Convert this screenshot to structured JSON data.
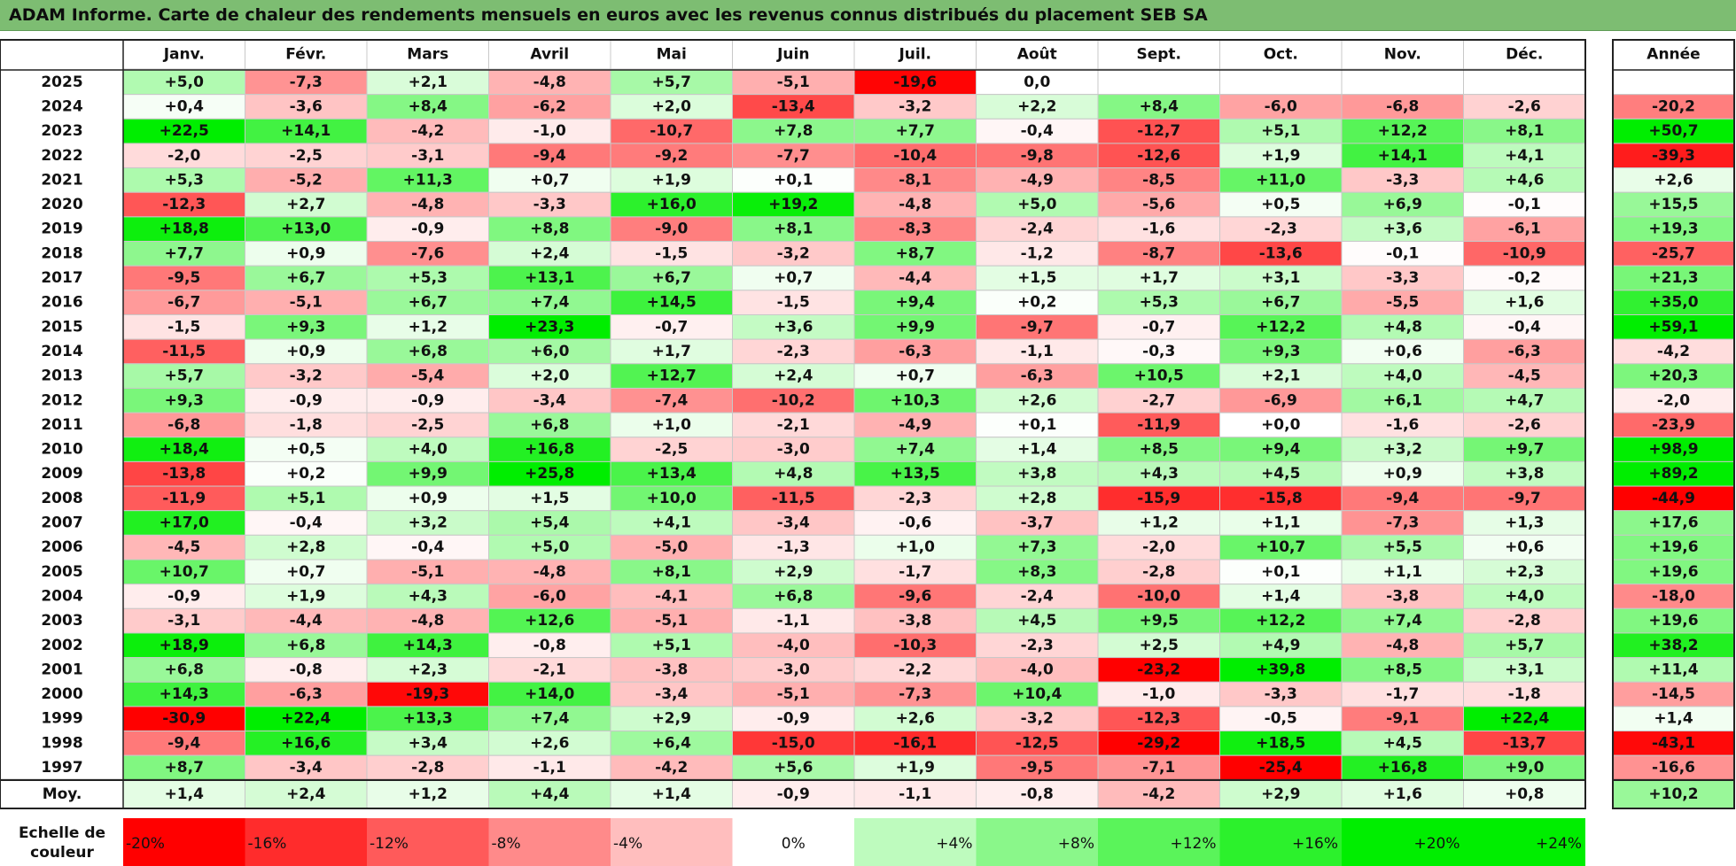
{
  "title": "ADAM Informe. Carte de chaleur des rendements mensuels en euros avec les revenus connus distribués du placement SEB SA",
  "chart_data": {
    "type": "heatmap",
    "months": [
      "Janv.",
      "Févr.",
      "Mars",
      "Avril",
      "Mai",
      "Juin",
      "Juil.",
      "Août",
      "Sept.",
      "Oct.",
      "Nov.",
      "Déc."
    ],
    "year_header": "Année",
    "rows": [
      {
        "year": "2025",
        "values": [
          "+5,0",
          "-7,3",
          "+2,1",
          "-4,8",
          "+5,7",
          "-5,1",
          "-19,6",
          "0,0",
          "",
          "",
          "",
          ""
        ],
        "annual": ""
      },
      {
        "year": "2024",
        "values": [
          "+0,4",
          "-3,6",
          "+8,4",
          "-6,2",
          "+2,0",
          "-13,4",
          "-3,2",
          "+2,2",
          "+8,4",
          "-6,0",
          "-6,8",
          "-2,6"
        ],
        "annual": "-20,2"
      },
      {
        "year": "2023",
        "values": [
          "+22,5",
          "+14,1",
          "-4,2",
          "-1,0",
          "-10,7",
          "+7,8",
          "+7,7",
          "-0,4",
          "-12,7",
          "+5,1",
          "+12,2",
          "+8,1"
        ],
        "annual": "+50,7"
      },
      {
        "year": "2022",
        "values": [
          "-2,0",
          "-2,5",
          "-3,1",
          "-9,4",
          "-9,2",
          "-7,7",
          "-10,4",
          "-9,8",
          "-12,6",
          "+1,9",
          "+14,1",
          "+4,1"
        ],
        "annual": "-39,3"
      },
      {
        "year": "2021",
        "values": [
          "+5,3",
          "-5,2",
          "+11,3",
          "+0,7",
          "+1,9",
          "+0,1",
          "-8,1",
          "-4,9",
          "-8,5",
          "+11,0",
          "-3,3",
          "+4,6"
        ],
        "annual": "+2,6"
      },
      {
        "year": "2020",
        "values": [
          "-12,3",
          "+2,7",
          "-4,8",
          "-3,3",
          "+16,0",
          "+19,2",
          "-4,8",
          "+5,0",
          "-5,6",
          "+0,5",
          "+6,9",
          "-0,1"
        ],
        "annual": "+15,5"
      },
      {
        "year": "2019",
        "values": [
          "+18,8",
          "+13,0",
          "-0,9",
          "+8,8",
          "-9,0",
          "+8,1",
          "-8,3",
          "-2,4",
          "-1,6",
          "-2,3",
          "+3,6",
          "-6,1"
        ],
        "annual": "+19,3"
      },
      {
        "year": "2018",
        "values": [
          "+7,7",
          "+0,9",
          "-7,6",
          "+2,4",
          "-1,5",
          "-3,2",
          "+8,7",
          "-1,2",
          "-8,7",
          "-13,6",
          "-0,1",
          "-10,9"
        ],
        "annual": "-25,7"
      },
      {
        "year": "2017",
        "values": [
          "-9,5",
          "+6,7",
          "+5,3",
          "+13,1",
          "+6,7",
          "+0,7",
          "-4,4",
          "+1,5",
          "+1,7",
          "+3,1",
          "-3,3",
          "-0,2"
        ],
        "annual": "+21,3"
      },
      {
        "year": "2016",
        "values": [
          "-6,7",
          "-5,1",
          "+6,7",
          "+7,4",
          "+14,5",
          "-1,5",
          "+9,4",
          "+0,2",
          "+5,3",
          "+6,7",
          "-5,5",
          "+1,6"
        ],
        "annual": "+35,0"
      },
      {
        "year": "2015",
        "values": [
          "-1,5",
          "+9,3",
          "+1,2",
          "+23,3",
          "-0,7",
          "+3,6",
          "+9,9",
          "-9,7",
          "-0,7",
          "+12,2",
          "+4,8",
          "-0,4"
        ],
        "annual": "+59,1"
      },
      {
        "year": "2014",
        "values": [
          "-11,5",
          "+0,9",
          "+6,8",
          "+6,0",
          "+1,7",
          "-2,3",
          "-6,3",
          "-1,1",
          "-0,3",
          "+9,3",
          "+0,6",
          "-6,3"
        ],
        "annual": "-4,2"
      },
      {
        "year": "2013",
        "values": [
          "+5,7",
          "-3,2",
          "-5,4",
          "+2,0",
          "+12,7",
          "+2,4",
          "+0,7",
          "-6,3",
          "+10,5",
          "+2,1",
          "+4,0",
          "-4,5"
        ],
        "annual": "+20,3"
      },
      {
        "year": "2012",
        "values": [
          "+9,3",
          "-0,9",
          "-0,9",
          "-3,4",
          "-7,4",
          "-10,2",
          "+10,3",
          "+2,6",
          "-2,7",
          "-6,9",
          "+6,1",
          "+4,7"
        ],
        "annual": "-2,0"
      },
      {
        "year": "2011",
        "values": [
          "-6,8",
          "-1,8",
          "-2,5",
          "+6,8",
          "+1,0",
          "-2,1",
          "-4,9",
          "+0,1",
          "-11,9",
          "+0,0",
          "-1,6",
          "-2,6"
        ],
        "annual": "-23,9"
      },
      {
        "year": "2010",
        "values": [
          "+18,4",
          "+0,5",
          "+4,0",
          "+16,8",
          "-2,5",
          "-3,0",
          "+7,4",
          "+1,4",
          "+8,5",
          "+9,4",
          "+3,2",
          "+9,7"
        ],
        "annual": "+98,9"
      },
      {
        "year": "2009",
        "values": [
          "-13,8",
          "+0,2",
          "+9,9",
          "+25,8",
          "+13,4",
          "+4,8",
          "+13,5",
          "+3,8",
          "+4,3",
          "+4,5",
          "+0,9",
          "+3,8"
        ],
        "annual": "+89,2"
      },
      {
        "year": "2008",
        "values": [
          "-11,9",
          "+5,1",
          "+0,9",
          "+1,5",
          "+10,0",
          "-11,5",
          "-2,3",
          "+2,8",
          "-15,9",
          "-15,8",
          "-9,4",
          "-9,7"
        ],
        "annual": "-44,9"
      },
      {
        "year": "2007",
        "values": [
          "+17,0",
          "-0,4",
          "+3,2",
          "+5,4",
          "+4,1",
          "-3,4",
          "-0,6",
          "-3,7",
          "+1,2",
          "+1,1",
          "-7,3",
          "+1,3"
        ],
        "annual": "+17,6"
      },
      {
        "year": "2006",
        "values": [
          "-4,5",
          "+2,8",
          "-0,4",
          "+5,0",
          "-5,0",
          "-1,3",
          "+1,0",
          "+7,3",
          "-2,0",
          "+10,7",
          "+5,5",
          "+0,6"
        ],
        "annual": "+19,6"
      },
      {
        "year": "2005",
        "values": [
          "+10,7",
          "+0,7",
          "-5,1",
          "-4,8",
          "+8,1",
          "+2,9",
          "-1,7",
          "+8,3",
          "-2,8",
          "+0,1",
          "+1,1",
          "+2,3"
        ],
        "annual": "+19,6"
      },
      {
        "year": "2004",
        "values": [
          "-0,9",
          "+1,9",
          "+4,3",
          "-6,0",
          "-4,1",
          "+6,8",
          "-9,6",
          "-2,4",
          "-10,0",
          "+1,4",
          "-3,8",
          "+4,0"
        ],
        "annual": "-18,0"
      },
      {
        "year": "2003",
        "values": [
          "-3,1",
          "-4,4",
          "-4,8",
          "+12,6",
          "-5,1",
          "-1,1",
          "-3,8",
          "+4,5",
          "+9,5",
          "+12,2",
          "+7,4",
          "-2,8"
        ],
        "annual": "+19,6"
      },
      {
        "year": "2002",
        "values": [
          "+18,9",
          "+6,8",
          "+14,3",
          "-0,8",
          "+5,1",
          "-4,0",
          "-10,3",
          "-2,3",
          "+2,5",
          "+4,9",
          "-4,8",
          "+5,7"
        ],
        "annual": "+38,2"
      },
      {
        "year": "2001",
        "values": [
          "+6,8",
          "-0,8",
          "+2,3",
          "-2,1",
          "-3,8",
          "-3,0",
          "-2,2",
          "-4,0",
          "-23,2",
          "+39,8",
          "+8,5",
          "+3,1"
        ],
        "annual": "+11,4"
      },
      {
        "year": "2000",
        "values": [
          "+14,3",
          "-6,3",
          "-19,3",
          "+14,0",
          "-3,4",
          "-5,1",
          "-7,3",
          "+10,4",
          "-1,0",
          "-3,3",
          "-1,7",
          "-1,8"
        ],
        "annual": "-14,5"
      },
      {
        "year": "1999",
        "values": [
          "-30,9",
          "+22,4",
          "+13,3",
          "+7,4",
          "+2,9",
          "-0,9",
          "+2,6",
          "-3,2",
          "-12,3",
          "-0,5",
          "-9,1",
          "+22,4"
        ],
        "annual": "+1,4"
      },
      {
        "year": "1998",
        "values": [
          "-9,4",
          "+16,6",
          "+3,4",
          "+2,6",
          "+6,4",
          "-15,0",
          "-16,1",
          "-12,5",
          "-29,2",
          "+18,5",
          "+4,5",
          "-13,7"
        ],
        "annual": "-43,1"
      },
      {
        "year": "1997",
        "values": [
          "+8,7",
          "-3,4",
          "-2,8",
          "-1,1",
          "-4,2",
          "+5,6",
          "+1,9",
          "-9,5",
          "-7,1",
          "-25,4",
          "+16,8",
          "+9,0"
        ],
        "annual": "-16,6"
      }
    ],
    "average": {
      "label": "Moy.",
      "values": [
        "+1,4",
        "+2,4",
        "+1,2",
        "+4,4",
        "+1,4",
        "-0,9",
        "-1,1",
        "-0,8",
        "-4,2",
        "+2,9",
        "+1,6",
        "+0,8"
      ],
      "annual": "+10,2"
    },
    "legend": {
      "label": "Echelle de couleur",
      "steps": [
        {
          "label": "-20%",
          "value": -20
        },
        {
          "label": "-16%",
          "value": -16
        },
        {
          "label": "-12%",
          "value": -12
        },
        {
          "label": "-8%",
          "value": -8
        },
        {
          "label": "-4%",
          "value": -4
        },
        {
          "label": "0%",
          "value": 0
        },
        {
          "label": "+4%",
          "value": 4
        },
        {
          "label": "+8%",
          "value": 8
        },
        {
          "label": "+12%",
          "value": 12
        },
        {
          "label": "+16%",
          "value": 16
        },
        {
          "label": "+20%",
          "value": 20
        },
        {
          "label": "+24%",
          "value": 24
        }
      ]
    },
    "colors": {
      "negative_max": "#ff0000",
      "neutral": "#ffffff",
      "positive_max": "#00ee00"
    }
  }
}
